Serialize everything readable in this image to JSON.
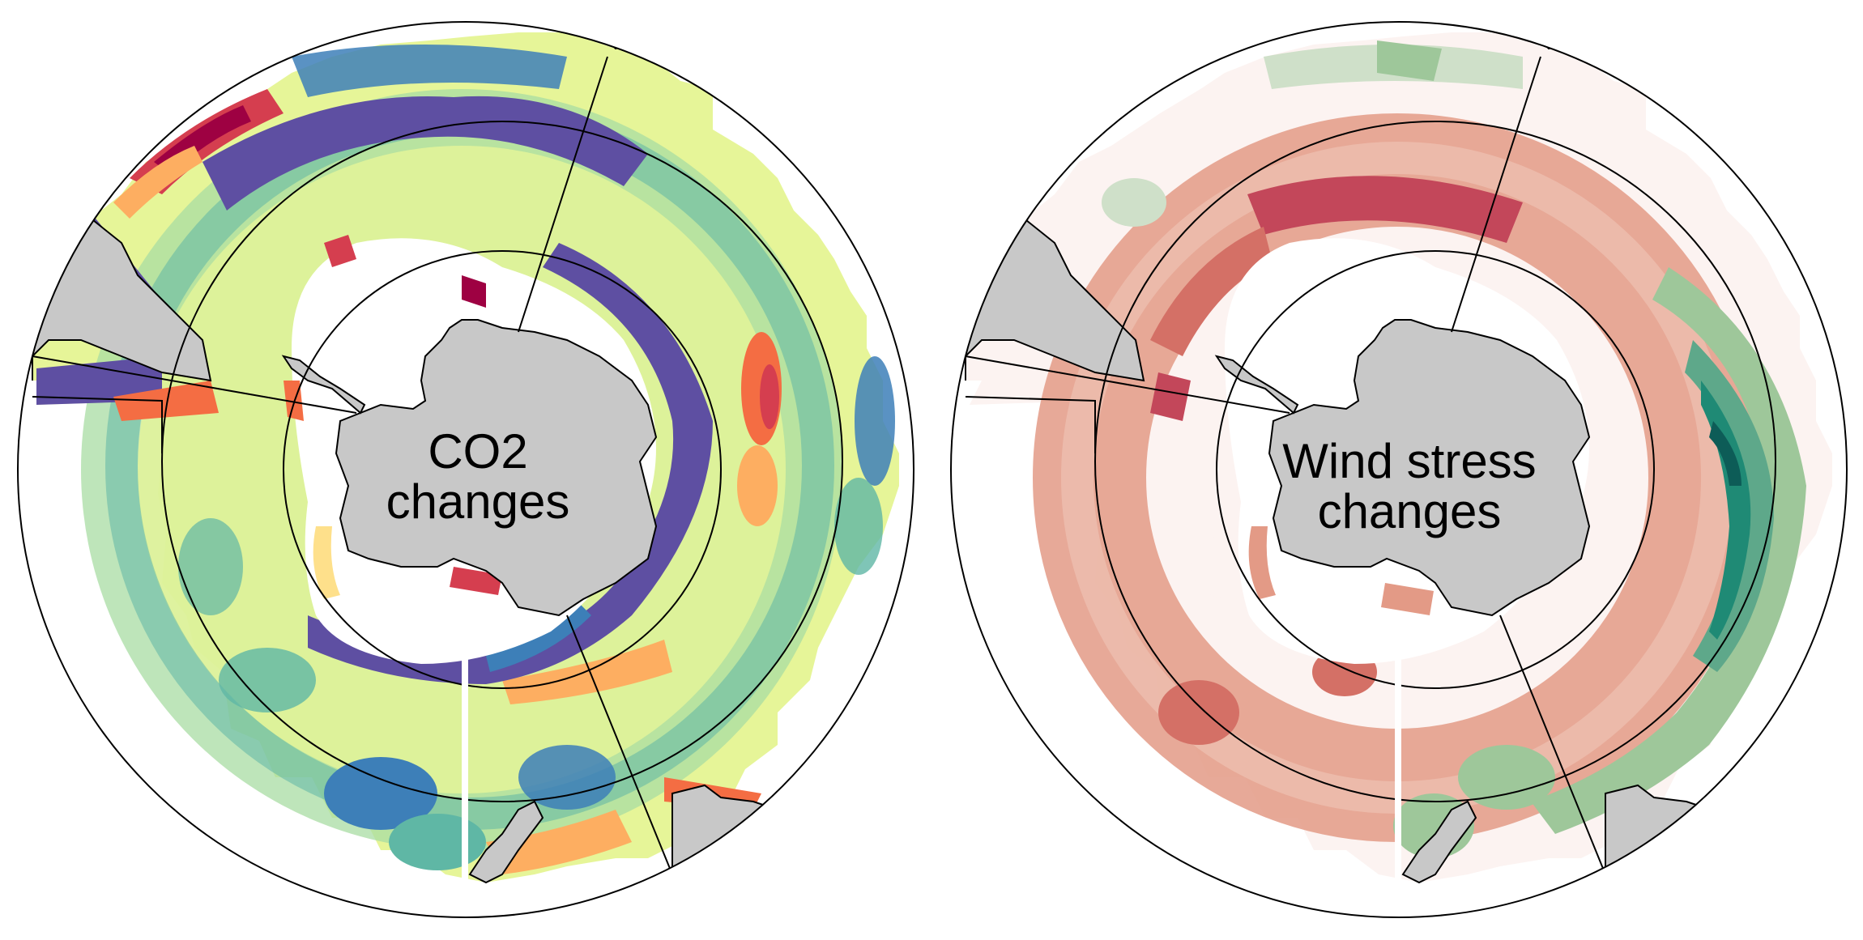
{
  "panels": [
    {
      "id": "co2",
      "label_line1": "CO2",
      "label_line2": "changes",
      "palette": [
        "#5e4fa2",
        "#3d7fb8",
        "#5fb7a5",
        "#a8dca3",
        "#e6f598",
        "#fee08b",
        "#fdae61",
        "#f46d43",
        "#d53e4f",
        "#9e0142"
      ]
    },
    {
      "id": "wind",
      "label_line1": "Wind stress",
      "label_line2": "changes",
      "palette": [
        "#fcf3f1",
        "#f0c7b8",
        "#e39a86",
        "#d47066",
        "#c3475a",
        "#ffffff",
        "#cfe0c9",
        "#9ec79a",
        "#5ea88a",
        "#1f8a75",
        "#0d5c57"
      ]
    }
  ],
  "colors": {
    "land": "#c8c8c8",
    "ice": "#ffffff",
    "outline": "#000000"
  }
}
